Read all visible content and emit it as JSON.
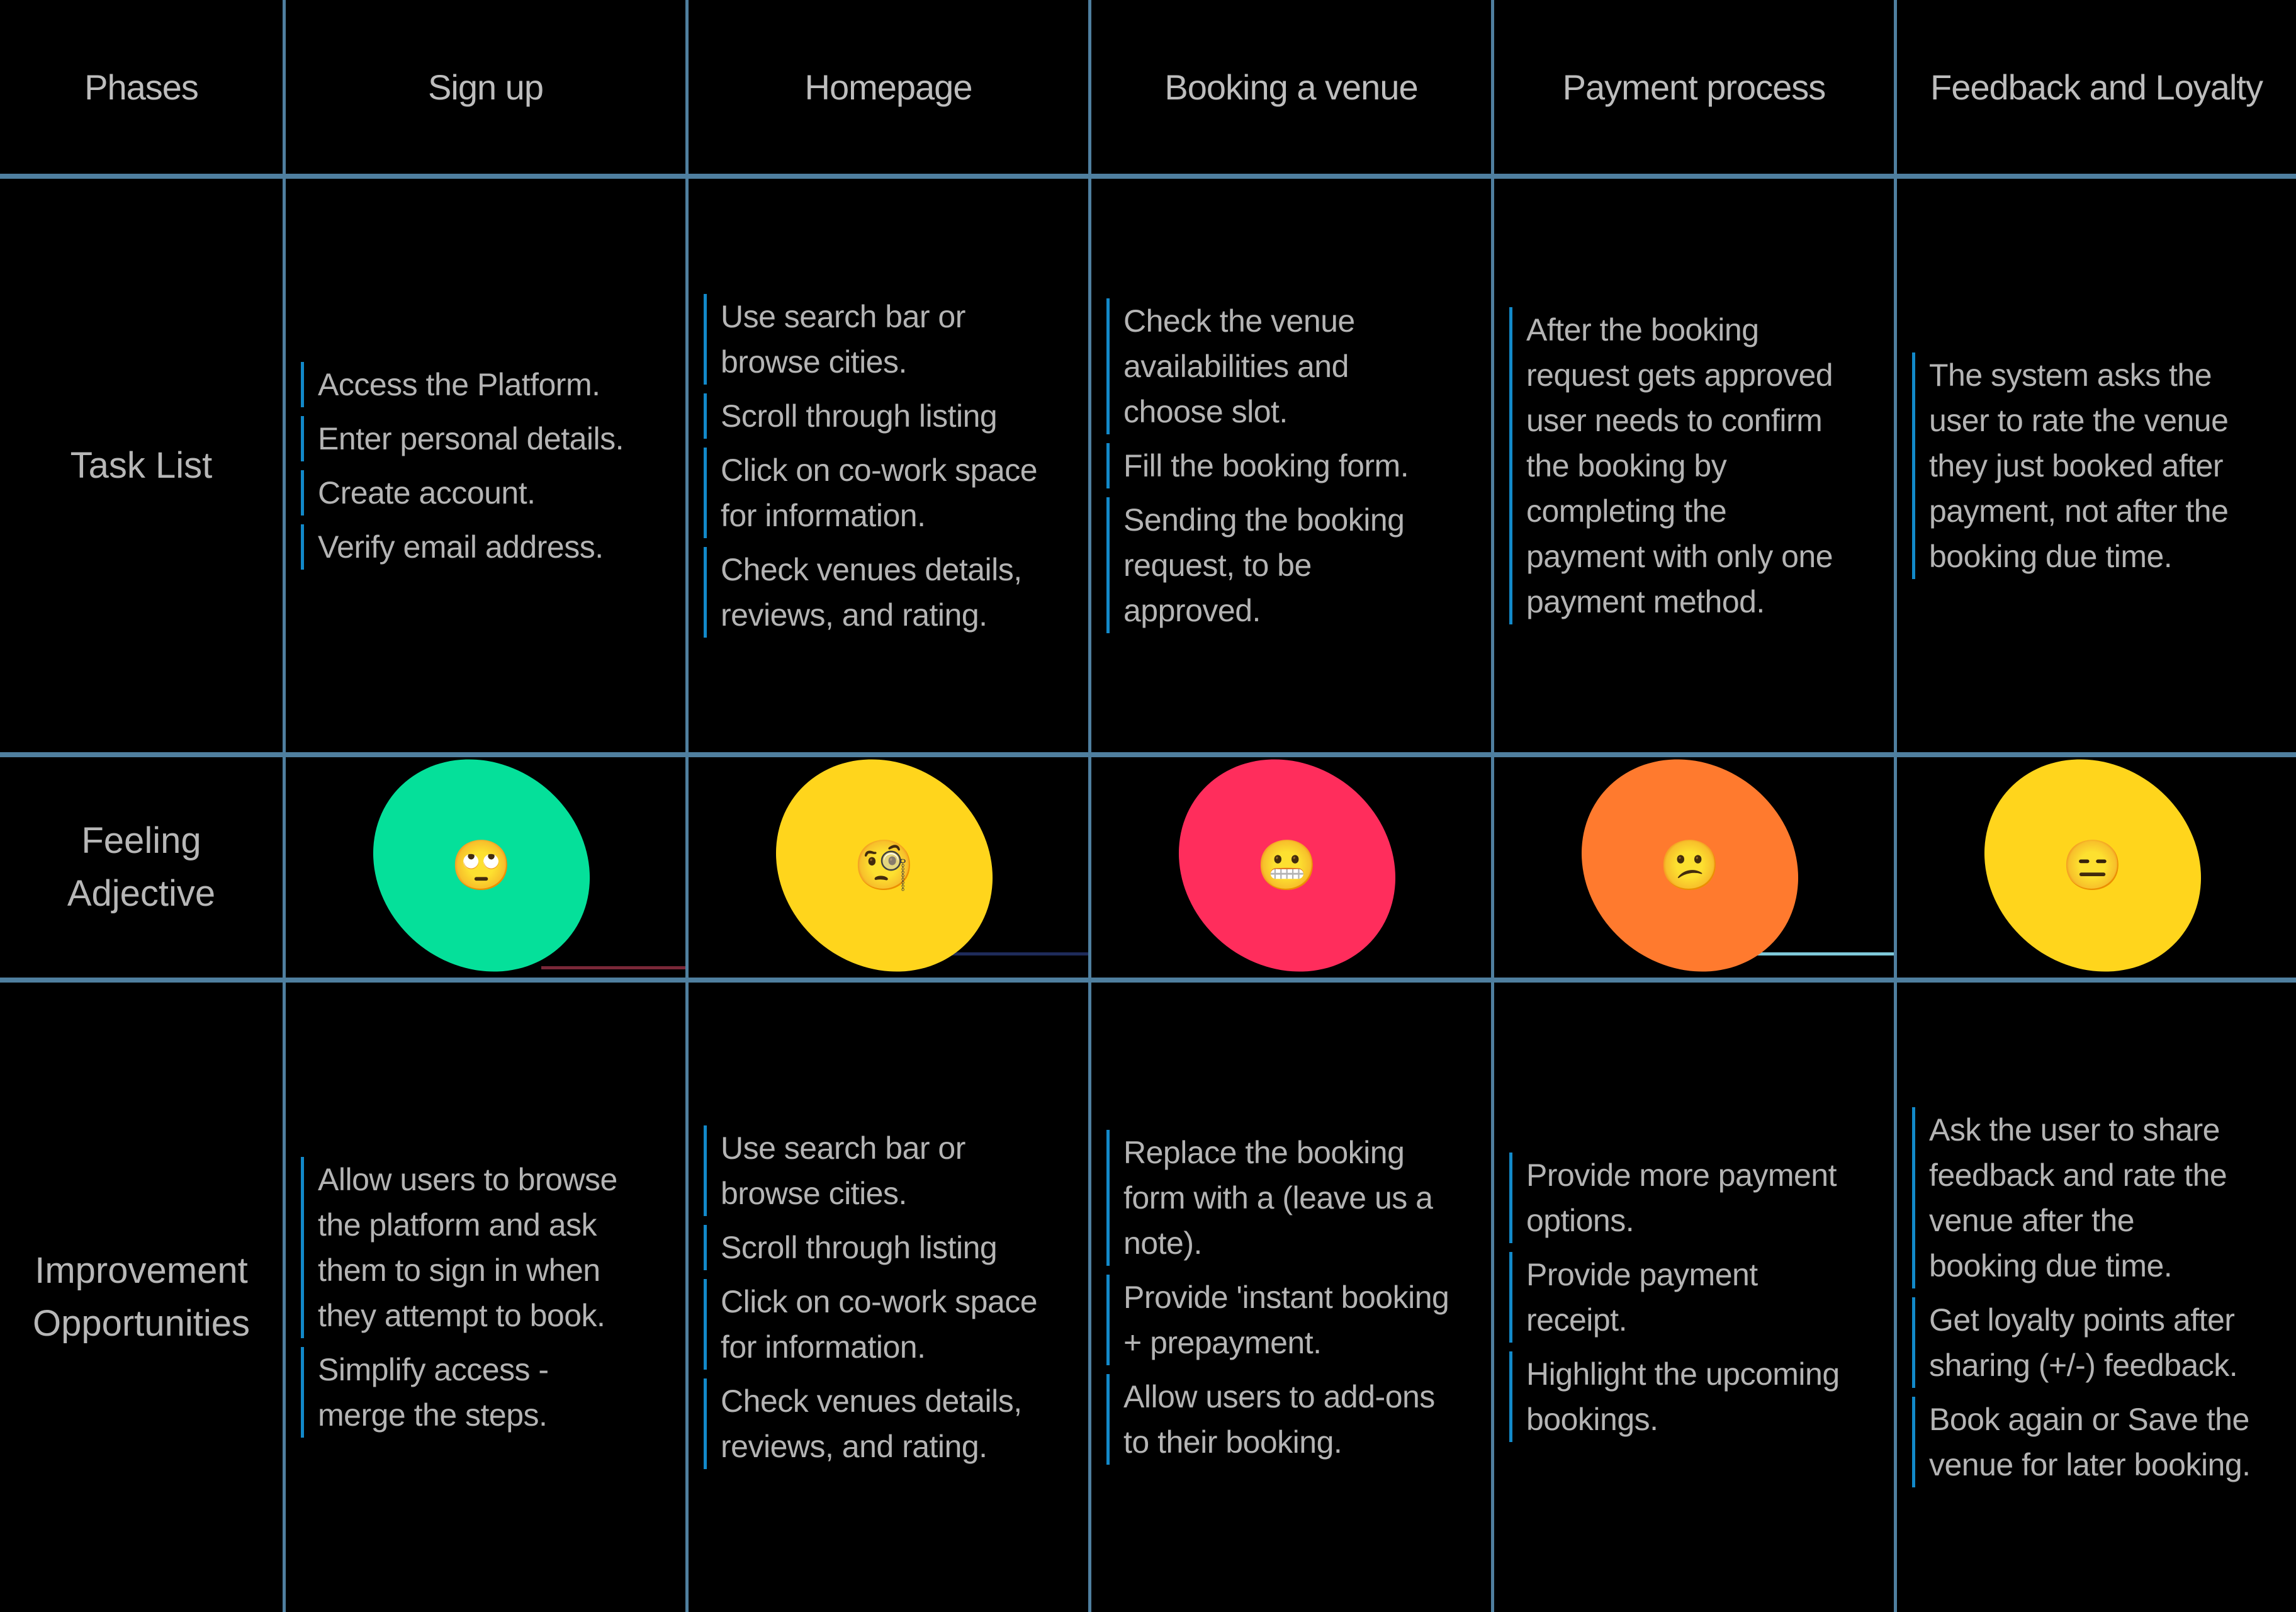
{
  "headers": [
    "Phases",
    "Sign up",
    "Homepage",
    "Booking a venue",
    "Payment process",
    "Feedback and Loyalty"
  ],
  "row_labels": {
    "task_list": [
      "Task List"
    ],
    "feeling": [
      "Feeling",
      "Adjective"
    ],
    "opportunities": [
      "Improvement",
      "Opportunities"
    ]
  },
  "task_list": [
    [
      "Access the Platform.",
      "Enter personal details.",
      "Create account.",
      "Verify email address."
    ],
    [
      "Use search bar or\nbrowse cities.",
      "Scroll through listing",
      "Click on co-work space\nfor information.",
      "Check venues details,\nreviews, and rating."
    ],
    [
      "Check the venue\navailabilities and\nchoose slot.",
      "Fill the booking form.",
      "Sending the booking\nrequest, to be\napproved."
    ],
    [
      "After the booking\nrequest gets approved\nuser needs to confirm\nthe booking by\ncompleting the\npayment with only one\npayment method."
    ],
    [
      "The system asks the\nuser to rate the venue\nthey just booked after\npayment, not after the\nbooking due time."
    ]
  ],
  "feelings": [
    {
      "emoji": "🙄",
      "emoji_name": "face-with-rolling-eyes-icon",
      "color": "#05e09a"
    },
    {
      "emoji": "🧐",
      "emoji_name": "face-with-monocle-icon",
      "color": "#ffd51c"
    },
    {
      "emoji": "😬",
      "emoji_name": "grimacing-face-icon",
      "color": "#ff2d5c"
    },
    {
      "emoji": "😕",
      "emoji_name": "confused-face-icon",
      "color": "#ff7a2e"
    },
    {
      "emoji": "😑",
      "emoji_name": "expressionless-face-icon",
      "color": "#ffd51c"
    }
  ],
  "opportunities": [
    [
      "Allow users to browse\nthe platform and ask\nthem to sign in when\nthey attempt to book.",
      "Simplify access -\nmerge the steps."
    ],
    [
      "Use search bar or\nbrowse cities.",
      "Scroll through listing",
      "Click on co-work space\nfor information.",
      "Check venues details,\nreviews, and rating."
    ],
    [
      "Replace the booking\nform with a (leave us a\nnote).",
      "Provide 'instant booking\n+ prepayment.",
      "Allow users to add-ons\nto their booking."
    ],
    [
      "Provide more payment\noptions.",
      "Provide payment\nreceipt.",
      "Highlight the upcoming\nbookings."
    ],
    [
      "Ask the user to share\nfeedback and rate the\nvenue after the\nbooking due time.",
      "Get loyalty points after\nsharing (+/-) feedback.",
      "Book again or Save the\nvenue for later booking."
    ]
  ]
}
